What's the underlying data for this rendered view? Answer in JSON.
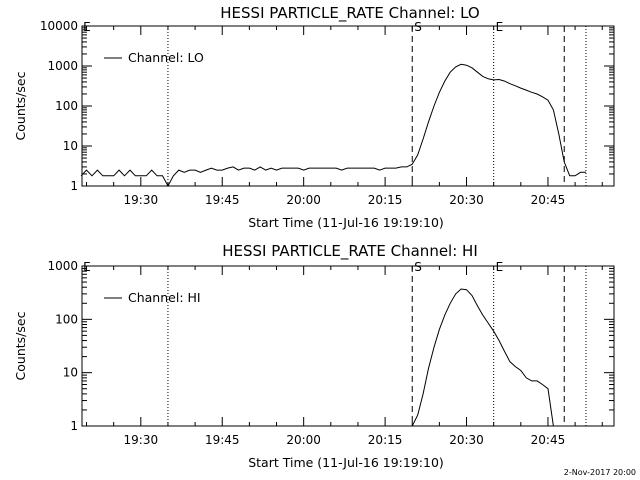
{
  "footer": {
    "stamp": "2-Nov-2017 20:00"
  },
  "chart_data": [
    {
      "type": "line",
      "title": "HESSI PARTICLE_RATE Channel: LO",
      "xlabel": "Start Time (11-Jul-16 19:19:10)",
      "ylabel": "Counts/sec",
      "yscale": "log",
      "ylim": [
        1,
        10000
      ],
      "xlim": [
        "19:19:10",
        "20:57:10"
      ],
      "xticks": [
        "19:30",
        "19:45",
        "20:00",
        "20:15",
        "20:30",
        "20:45"
      ],
      "yticks": [
        "1",
        "10",
        "100",
        "1000",
        "10000"
      ],
      "legend": {
        "entries": [
          "Channel: LO"
        ],
        "position": "top-left"
      },
      "markers": {
        "dashed": [
          "20:20",
          "20:48"
        ],
        "dotted": [
          "19:35",
          "20:35",
          "20:52"
        ],
        "labels": [
          {
            "text": "E",
            "x": "19:19"
          },
          {
            "text": "S",
            "x": "20:20"
          },
          {
            "text": "E",
            "x": "20:35"
          }
        ]
      },
      "series": [
        {
          "name": "Channel: LO",
          "x": [
            "19:19",
            "19:20",
            "19:21",
            "19:22",
            "19:23",
            "19:24",
            "19:25",
            "19:26",
            "19:27",
            "19:28",
            "19:29",
            "19:30",
            "19:31",
            "19:32",
            "19:33",
            "19:34",
            "19:35",
            "19:36",
            "19:37",
            "19:38",
            "19:39",
            "19:40",
            "19:41",
            "19:42",
            "19:43",
            "19:44",
            "19:45",
            "19:46",
            "19:47",
            "19:48",
            "19:49",
            "19:50",
            "19:51",
            "19:52",
            "19:53",
            "19:54",
            "19:55",
            "19:56",
            "19:57",
            "19:58",
            "19:59",
            "20:00",
            "20:01",
            "20:02",
            "20:03",
            "20:04",
            "20:05",
            "20:06",
            "20:07",
            "20:08",
            "20:09",
            "20:10",
            "20:11",
            "20:12",
            "20:13",
            "20:14",
            "20:15",
            "20:16",
            "20:17",
            "20:18",
            "20:19",
            "20:20",
            "20:21",
            "20:22",
            "20:23",
            "20:24",
            "20:25",
            "20:26",
            "20:27",
            "20:28",
            "20:29",
            "20:30",
            "20:31",
            "20:32",
            "20:33",
            "20:34",
            "20:35",
            "20:36",
            "20:37",
            "20:38",
            "20:39",
            "20:40",
            "20:41",
            "20:42",
            "20:43",
            "20:44",
            "20:45",
            "20:46",
            "20:47",
            "20:48",
            "20:49",
            "20:50",
            "20:51",
            "20:52"
          ],
          "y": [
            1.8,
            2.5,
            1.8,
            2.5,
            1.8,
            1.8,
            1.8,
            2.5,
            1.8,
            2.5,
            1.8,
            1.8,
            1.8,
            2.5,
            1.8,
            1.8,
            1.0,
            1.8,
            2.5,
            2.2,
            2.5,
            2.5,
            2.2,
            2.5,
            2.8,
            2.5,
            2.5,
            2.8,
            3.0,
            2.5,
            2.8,
            2.8,
            2.5,
            3.0,
            2.5,
            2.8,
            2.5,
            2.8,
            2.8,
            2.8,
            2.8,
            2.5,
            2.8,
            2.8,
            2.8,
            2.8,
            2.8,
            2.8,
            2.5,
            2.8,
            2.8,
            2.8,
            2.8,
            2.8,
            2.8,
            2.5,
            2.8,
            2.8,
            2.8,
            3.0,
            3.0,
            3.5,
            6,
            15,
            40,
            100,
            220,
            420,
            700,
            950,
            1100,
            1050,
            900,
            700,
            550,
            480,
            450,
            460,
            420,
            360,
            320,
            280,
            250,
            220,
            200,
            170,
            140,
            80,
            20,
            4,
            1.8,
            1.8,
            2.2,
            2.2
          ]
        }
      ]
    },
    {
      "type": "line",
      "title": "HESSI PARTICLE_RATE Channel: HI",
      "xlabel": "Start Time (11-Jul-16 19:19:10)",
      "ylabel": "Counts/sec",
      "yscale": "log",
      "ylim": [
        1,
        1000
      ],
      "xlim": [
        "19:19:10",
        "20:57:10"
      ],
      "xticks": [
        "19:30",
        "19:45",
        "20:00",
        "20:15",
        "20:30",
        "20:45"
      ],
      "yticks": [
        "1",
        "10",
        "100",
        "1000"
      ],
      "legend": {
        "entries": [
          "Channel: HI"
        ],
        "position": "top-left"
      },
      "markers": {
        "dashed": [
          "20:20",
          "20:48"
        ],
        "dotted": [
          "19:35",
          "20:35",
          "20:52"
        ],
        "labels": [
          {
            "text": "E",
            "x": "19:19"
          },
          {
            "text": "S",
            "x": "20:20"
          },
          {
            "text": "E",
            "x": "20:35"
          }
        ]
      },
      "series": [
        {
          "name": "Channel: HI",
          "x": [
            "20:20",
            "20:21",
            "20:22",
            "20:23",
            "20:24",
            "20:25",
            "20:26",
            "20:27",
            "20:28",
            "20:29",
            "20:30",
            "20:31",
            "20:32",
            "20:33",
            "20:34",
            "20:35",
            "20:36",
            "20:37",
            "20:38",
            "20:39",
            "20:40",
            "20:41",
            "20:42",
            "20:43",
            "20:44",
            "20:45",
            "20:46"
          ],
          "y": [
            1,
            1.6,
            4,
            12,
            30,
            65,
            120,
            200,
            300,
            370,
            360,
            280,
            180,
            120,
            85,
            60,
            40,
            25,
            16,
            13,
            11,
            8,
            7,
            7,
            6,
            5,
            1
          ]
        }
      ]
    }
  ]
}
